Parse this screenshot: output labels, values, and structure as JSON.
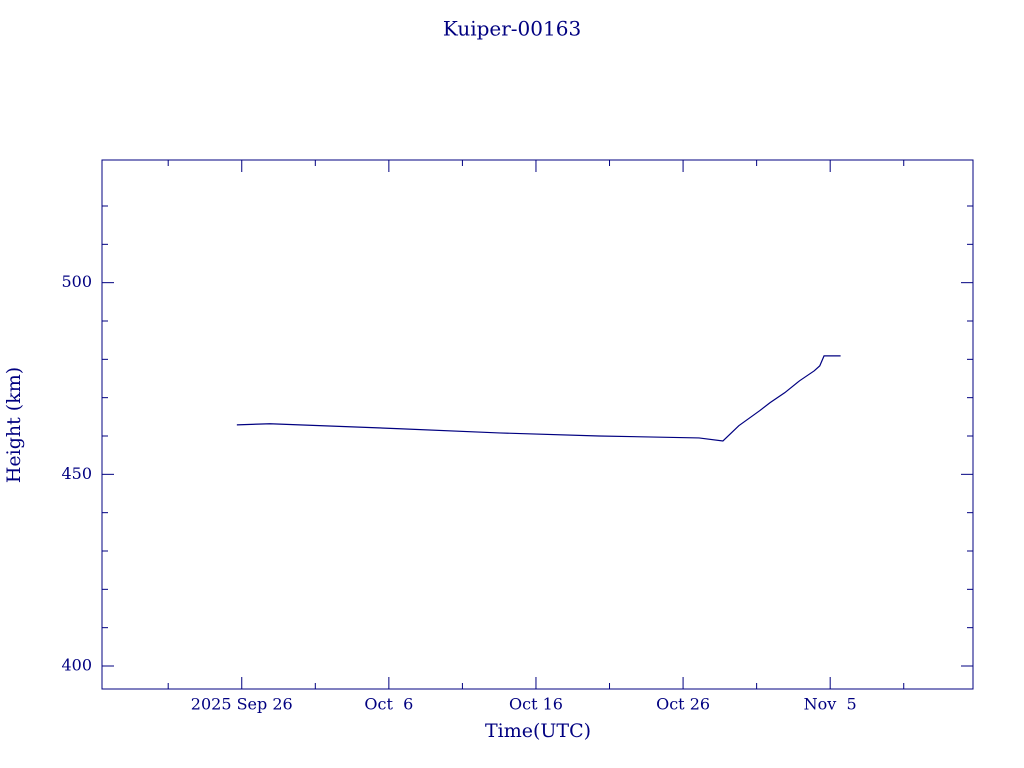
{
  "chart_data": {
    "type": "line",
    "title": "Kuiper-00163",
    "xlabel": "Time(UTC)",
    "ylabel": "Height (km)",
    "x": [
      "2025-09-25T16:00Z",
      "2025-09-27T22:00Z",
      "2025-10-06T18:00Z",
      "2025-10-13T12:00Z",
      "2025-10-20T07:00Z",
      "2025-10-27T02:00Z",
      "2025-10-28T17:00Z",
      "2025-10-29T19:00Z",
      "2025-10-31T05:00Z",
      "2025-10-31T22:00Z",
      "2025-11-01T22:00Z",
      "2025-11-02T22:00Z",
      "2025-11-03T22:00Z",
      "2025-11-04T07:00Z",
      "2025-11-04T14:00Z",
      "2025-11-05T17:00Z"
    ],
    "series": [
      {
        "name": "Height",
        "color": "#000080",
        "values": [
          462.9,
          463.2,
          461.9,
          460.8,
          460.0,
          459.5,
          458.7,
          462.7,
          466.6,
          468.7,
          471.3,
          474.4,
          477.0,
          478.3,
          480.9,
          480.9
        ]
      }
    ],
    "xlim": [
      "2025-09-16T12:00Z",
      "2025-11-14T17:00Z"
    ],
    "xticks": [
      {
        "value": "2025-09-26",
        "label": "2025 Sep 26"
      },
      {
        "value": "2025-10-06",
        "label": "Oct  6"
      },
      {
        "value": "2025-10-16",
        "label": "Oct 16"
      },
      {
        "value": "2025-10-26",
        "label": "Oct 26"
      },
      {
        "value": "2025-11-05",
        "label": "Nov  5"
      }
    ],
    "xminorticks": [
      "2025-09-21",
      "2025-10-01",
      "2025-10-11",
      "2025-10-21",
      "2025-10-31",
      "2025-11-10"
    ],
    "ylim": [
      394,
      532
    ],
    "yticks": [
      400,
      450,
      500
    ],
    "yminorticks": [
      410,
      420,
      430,
      440,
      460,
      470,
      480,
      490,
      510,
      520
    ]
  }
}
